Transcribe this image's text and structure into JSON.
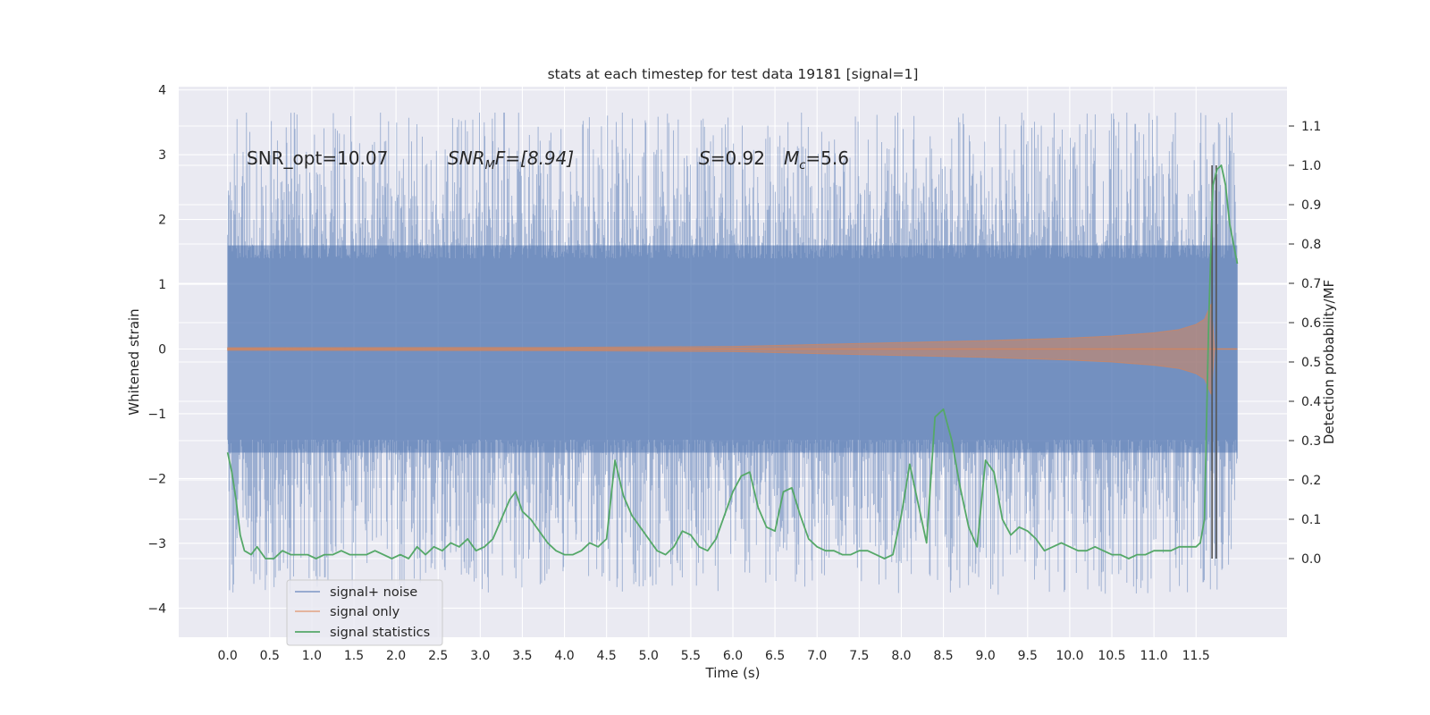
{
  "chart_data": {
    "type": "line",
    "title": "stats at each timestep for test data 19181 [signal=1]",
    "xlabel": "Time (s)",
    "ylabel": "Whitened strain",
    "ylabel_right": "Detection probability/MF",
    "xlim": [
      -0.58,
      12.58
    ],
    "ylim": [
      -4.45,
      4.05
    ],
    "ylim_right": [
      -0.2,
      1.2
    ],
    "x_ticks": [
      "0.0",
      "0.5",
      "1.0",
      "1.5",
      "2.0",
      "2.5",
      "3.0",
      "3.5",
      "4.0",
      "4.5",
      "5.0",
      "5.5",
      "6.0",
      "6.5",
      "7.0",
      "7.5",
      "8.0",
      "8.5",
      "9.0",
      "9.5",
      "10.0",
      "10.5",
      "11.0",
      "11.5"
    ],
    "y_ticks": [
      "−4",
      "−3",
      "−2",
      "−1",
      "0",
      "1",
      "2",
      "3",
      "4"
    ],
    "y_ticks_right": [
      "0.0",
      "0.1",
      "0.2",
      "0.3",
      "0.4",
      "0.5",
      "0.6",
      "0.7",
      "0.8",
      "0.9",
      "1.0",
      "1.1"
    ],
    "grid": true,
    "legend_position": "lower-left",
    "annotations": {
      "snr_opt": "SNR_opt=10.07",
      "snr_mf_base": "SNR",
      "snr_mf_sub": "M",
      "snr_mf_rest": "F=[8.94]",
      "s_base": "S",
      "s_rest": "=0.92",
      "mc_base": "M",
      "mc_sub": "c",
      "mc_rest": "=5.6"
    },
    "event_markers_x": [
      11.69,
      11.74
    ],
    "series": [
      {
        "name": "signal+ noise",
        "color": "#4c72b0",
        "description_values": {
          "x_range": [
            0.0,
            11.99
          ],
          "typical_envelope": [
            -1.6,
            1.6
          ],
          "max": 3.65,
          "min": -4.1
        }
      },
      {
        "name": "signal only",
        "color": "#dd8452",
        "envelope": {
          "x": [
            0.0,
            4.0,
            6.0,
            7.0,
            8.0,
            9.0,
            10.0,
            10.5,
            11.0,
            11.3,
            11.5,
            11.6,
            11.68,
            11.72,
            11.99
          ],
          "amp": [
            0.02,
            0.025,
            0.04,
            0.07,
            0.1,
            0.13,
            0.17,
            0.2,
            0.25,
            0.3,
            0.38,
            0.46,
            0.7,
            0.0,
            0.0
          ]
        }
      },
      {
        "name": "signal statistics",
        "color": "#55a868",
        "x": [
          0.0,
          0.05,
          0.1,
          0.15,
          0.2,
          0.28,
          0.35,
          0.45,
          0.55,
          0.65,
          0.75,
          0.85,
          0.95,
          1.05,
          1.15,
          1.25,
          1.35,
          1.45,
          1.55,
          1.65,
          1.75,
          1.85,
          1.95,
          2.05,
          2.15,
          2.25,
          2.35,
          2.45,
          2.55,
          2.65,
          2.75,
          2.85,
          2.95,
          3.05,
          3.15,
          3.25,
          3.35,
          3.42,
          3.5,
          3.6,
          3.7,
          3.8,
          3.9,
          4.0,
          4.1,
          4.2,
          4.3,
          4.4,
          4.5,
          4.6,
          4.7,
          4.8,
          4.9,
          5.0,
          5.1,
          5.2,
          5.3,
          5.4,
          5.5,
          5.6,
          5.7,
          5.8,
          5.9,
          6.0,
          6.1,
          6.2,
          6.3,
          6.4,
          6.5,
          6.6,
          6.7,
          6.8,
          6.9,
          7.0,
          7.1,
          7.2,
          7.3,
          7.4,
          7.5,
          7.6,
          7.7,
          7.8,
          7.9,
          8.0,
          8.1,
          8.2,
          8.3,
          8.4,
          8.5,
          8.6,
          8.7,
          8.8,
          8.9,
          9.0,
          9.1,
          9.2,
          9.3,
          9.4,
          9.5,
          9.6,
          9.7,
          9.8,
          9.9,
          10.0,
          10.1,
          10.2,
          10.3,
          10.4,
          10.5,
          10.6,
          10.7,
          10.8,
          10.9,
          11.0,
          11.1,
          11.2,
          11.3,
          11.4,
          11.5,
          11.55,
          11.6,
          11.65,
          11.7,
          11.75,
          11.8,
          11.85,
          11.9,
          11.99
        ],
        "values": [
          0.27,
          0.22,
          0.15,
          0.06,
          0.02,
          0.01,
          0.03,
          0.0,
          0.0,
          0.02,
          0.01,
          0.01,
          0.01,
          0.0,
          0.01,
          0.01,
          0.02,
          0.01,
          0.01,
          0.01,
          0.02,
          0.01,
          0.0,
          0.01,
          0.0,
          0.03,
          0.01,
          0.03,
          0.02,
          0.04,
          0.03,
          0.05,
          0.02,
          0.03,
          0.05,
          0.1,
          0.15,
          0.17,
          0.12,
          0.1,
          0.07,
          0.04,
          0.02,
          0.01,
          0.01,
          0.02,
          0.04,
          0.03,
          0.05,
          0.25,
          0.16,
          0.11,
          0.08,
          0.05,
          0.02,
          0.01,
          0.03,
          0.07,
          0.06,
          0.03,
          0.02,
          0.05,
          0.11,
          0.17,
          0.21,
          0.22,
          0.13,
          0.08,
          0.07,
          0.17,
          0.18,
          0.11,
          0.05,
          0.03,
          0.02,
          0.02,
          0.01,
          0.01,
          0.02,
          0.02,
          0.01,
          0.0,
          0.01,
          0.11,
          0.24,
          0.14,
          0.04,
          0.36,
          0.38,
          0.3,
          0.18,
          0.08,
          0.03,
          0.25,
          0.22,
          0.1,
          0.06,
          0.08,
          0.07,
          0.05,
          0.02,
          0.03,
          0.04,
          0.03,
          0.02,
          0.02,
          0.03,
          0.02,
          0.01,
          0.01,
          0.0,
          0.01,
          0.01,
          0.02,
          0.02,
          0.02,
          0.03,
          0.03,
          0.03,
          0.04,
          0.1,
          0.6,
          0.95,
          0.99,
          1.0,
          0.95,
          0.85,
          0.75
        ]
      }
    ]
  }
}
